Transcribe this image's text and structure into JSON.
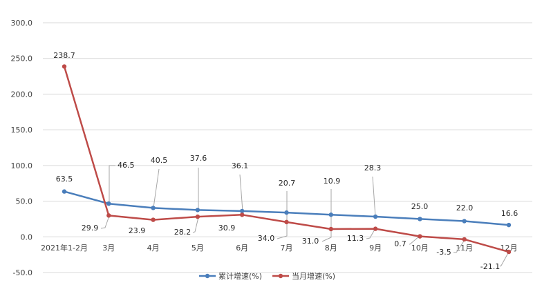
{
  "chart_data": {
    "type": "line",
    "categories": [
      "2021年1-2月",
      "3月",
      "4月",
      "5月",
      "6月",
      "7月",
      "8月",
      "9月",
      "10月",
      "11月",
      "12月"
    ],
    "series": [
      {
        "name": "累计增速(%)",
        "color": "#4a7ebb",
        "values": [
          63.5,
          46.5,
          40.5,
          37.6,
          36.1,
          34.0,
          31.0,
          28.3,
          25.0,
          22.0,
          16.6
        ]
      },
      {
        "name": "当月增速(%)",
        "color": "#be4b48",
        "values": [
          238.7,
          29.9,
          23.9,
          28.2,
          30.9,
          20.7,
          10.9,
          11.3,
          0.7,
          -3.5,
          -21.1
        ]
      }
    ],
    "yticks": [
      "300.0",
      "250.0",
      "200.0",
      "150.0",
      "100.0",
      "50.0",
      "0.0",
      "-50.0"
    ],
    "ylim": [
      -50,
      300
    ],
    "grid": "horizontal",
    "legend": "bottom"
  }
}
